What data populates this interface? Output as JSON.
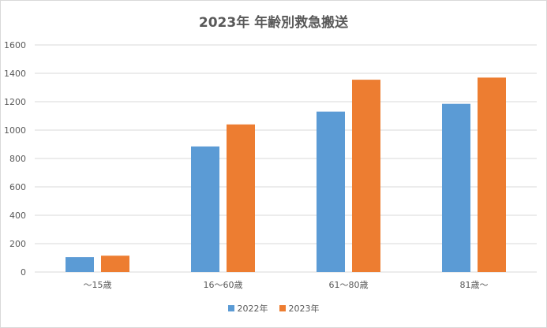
{
  "chart_data": {
    "type": "bar",
    "title": "2023年 年齢別救急搬送",
    "categories": [
      "～15歳",
      "16～60歳",
      "61～80歳",
      "81歳～"
    ],
    "series": [
      {
        "name": "2022年",
        "color": "#5b9bd5",
        "values": [
          105,
          885,
          1130,
          1185
        ]
      },
      {
        "name": "2023年",
        "color": "#ed7d31",
        "values": [
          115,
          1040,
          1355,
          1370
        ]
      }
    ],
    "yticks": [
      0,
      200,
      400,
      600,
      800,
      1000,
      1200,
      1400,
      1600
    ],
    "ylim": [
      0,
      1600
    ],
    "grid": true,
    "legend_position": "bottom"
  }
}
